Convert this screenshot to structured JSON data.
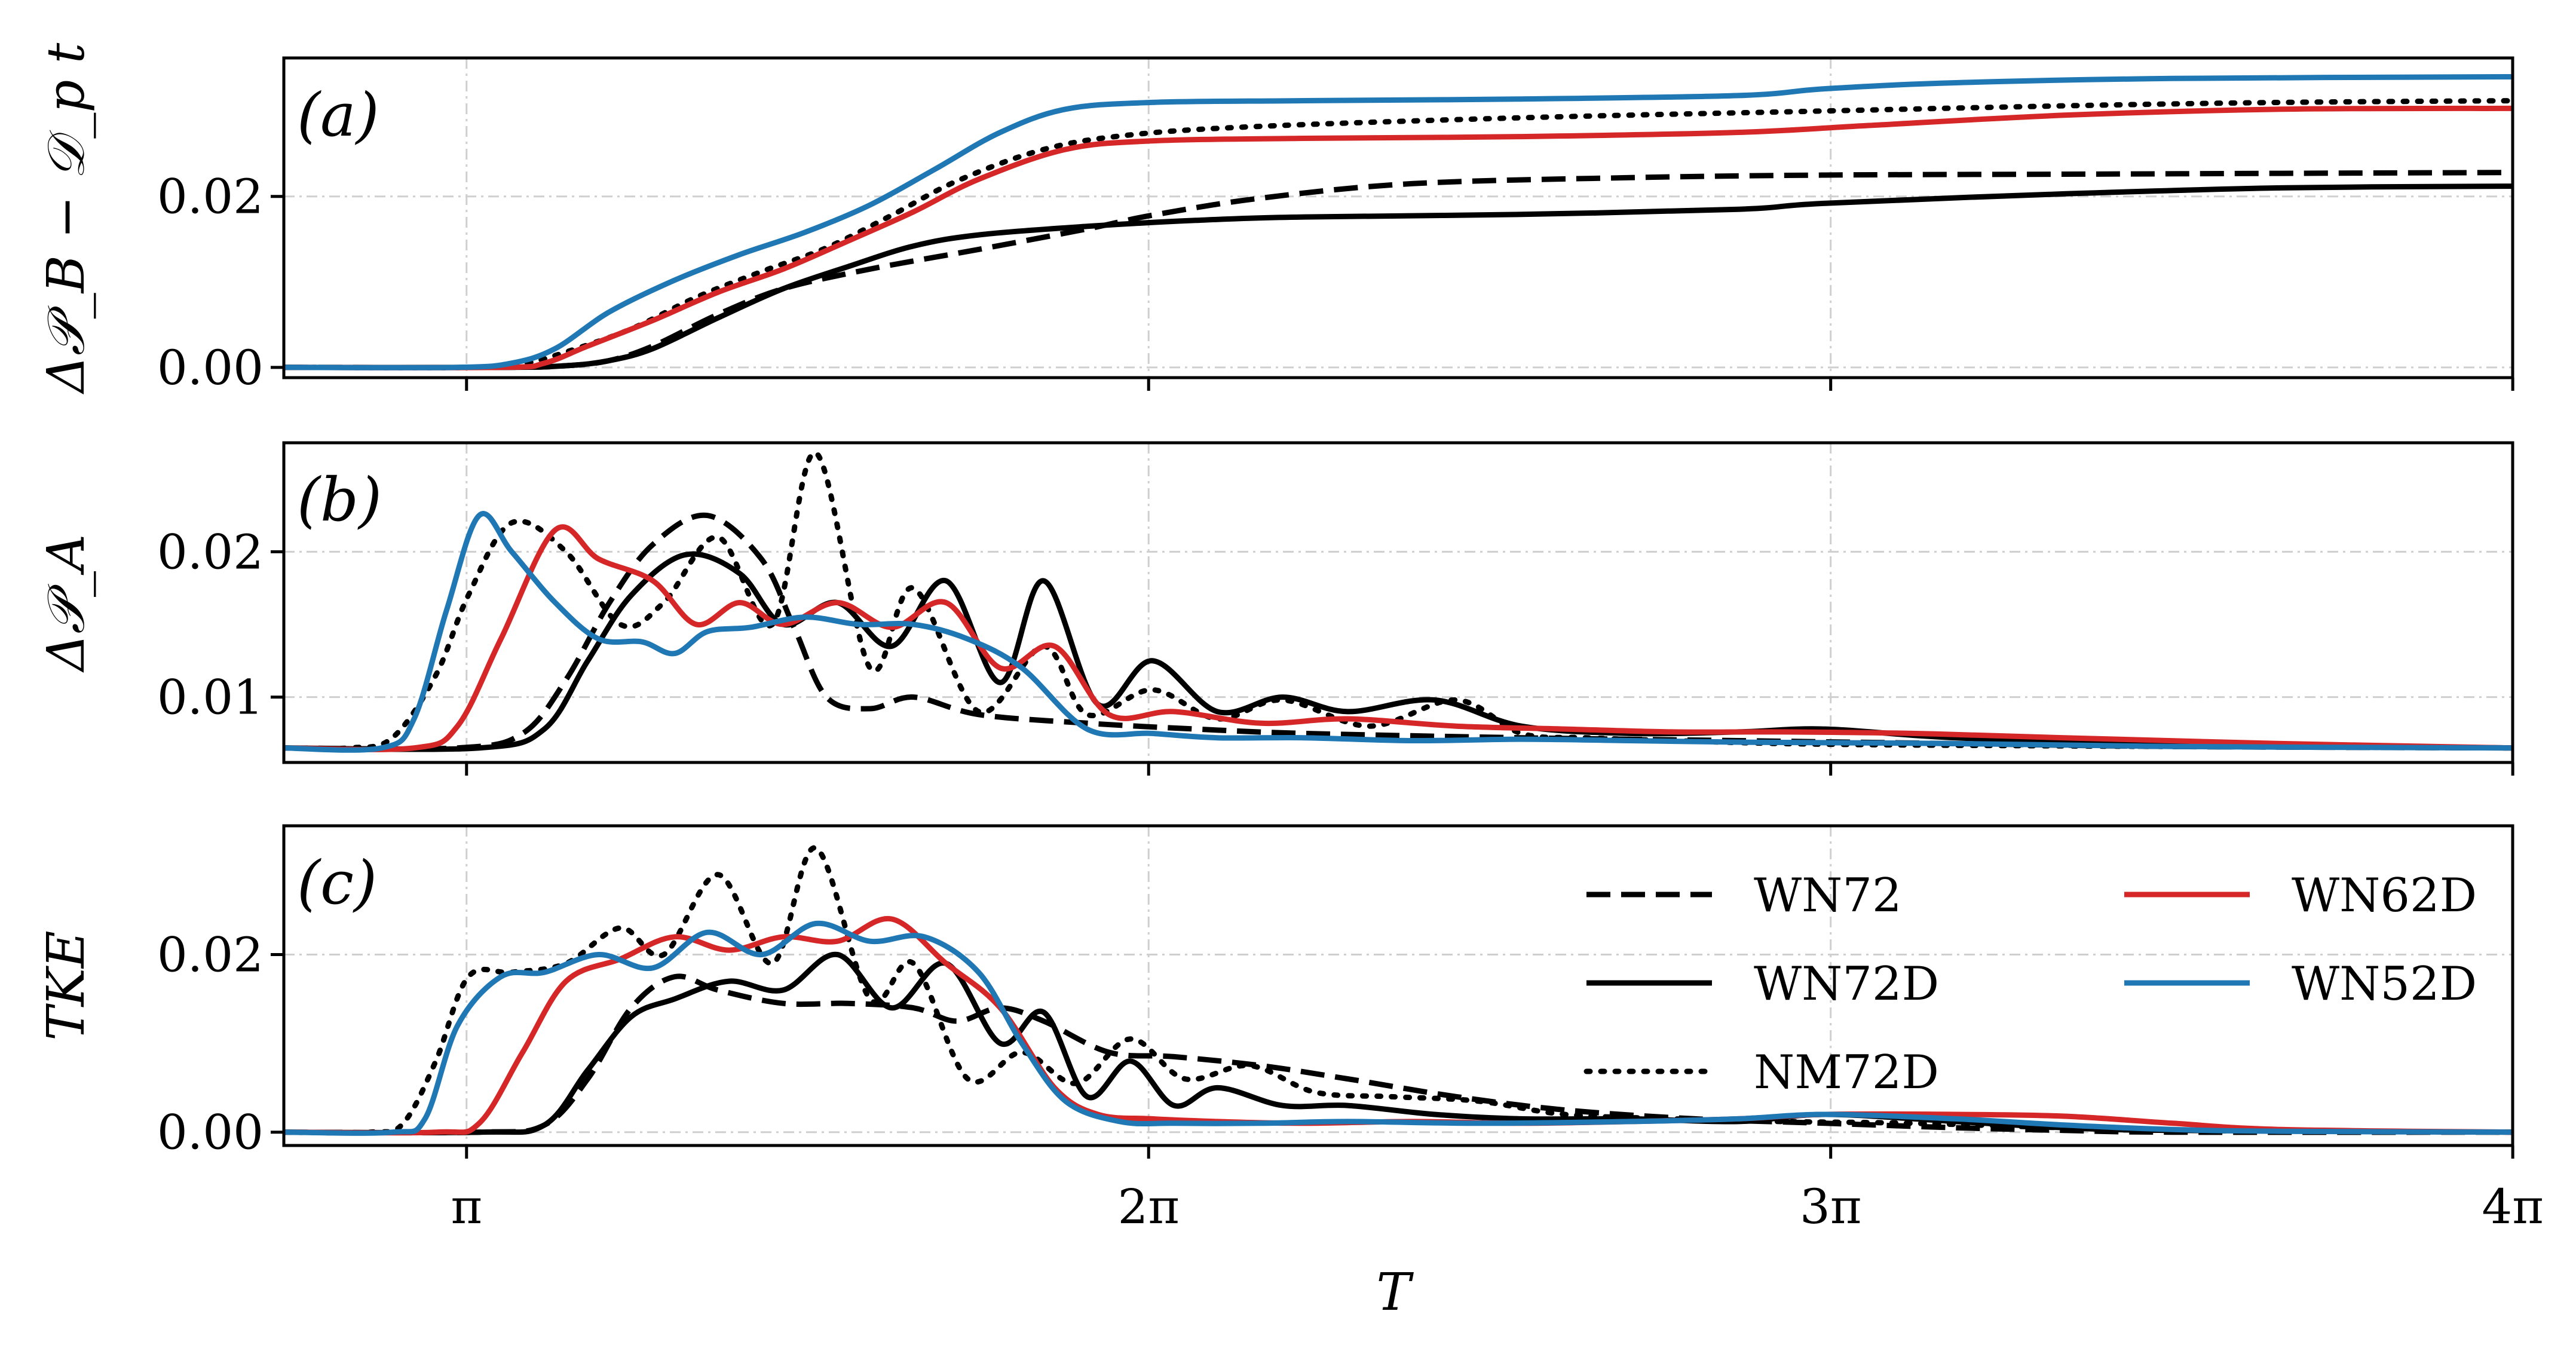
{
  "chart_data": {
    "type": "line",
    "shared_x": {
      "label": "T",
      "lim": [
        2.3,
        12.566
      ],
      "ticks": [
        3.1416,
        6.2832,
        9.4248,
        12.5664
      ],
      "tick_labels": [
        "π",
        "2π",
        "3π",
        "4π"
      ]
    },
    "grid": true,
    "legend": {
      "placement": "inside-right of panel (c), two columns",
      "entries": [
        {
          "name": "WN72",
          "color": "#000000",
          "style": "dashed"
        },
        {
          "name": "WN72D",
          "color": "#000000",
          "style": "solid"
        },
        {
          "name": "NM72D",
          "color": "#000000",
          "style": "dotted"
        },
        {
          "name": "WN62D",
          "color": "#d62728",
          "style": "solid"
        },
        {
          "name": "WN52D",
          "color": "#1f77b4",
          "style": "solid"
        }
      ]
    },
    "panels": [
      {
        "id": "a",
        "tag": "(a)",
        "ylabel": "Δ𝒫_B − 𝒟_p t",
        "ylim": [
          -0.0012,
          0.0362
        ],
        "yticks": [
          0.0,
          0.02
        ],
        "ytick_labels": [
          "0.00",
          "0.02"
        ],
        "series": [
          {
            "name": "WN72",
            "x": [
              2.3,
              3.3,
              3.6,
              3.8,
              4.0,
              4.3,
              4.6,
              5.0,
              5.5,
              6.0,
              6.3,
              6.8,
              7.5,
              8.5,
              9.4,
              10.5,
              11.5,
              12.566
            ],
            "y": [
              0,
              0,
              0.0002,
              0.0008,
              0.0025,
              0.0062,
              0.0092,
              0.0115,
              0.0138,
              0.0162,
              0.0178,
              0.0198,
              0.0215,
              0.0222,
              0.0225,
              0.0226,
              0.0227,
              0.0228
            ]
          },
          {
            "name": "WN72D",
            "x": [
              2.3,
              3.3,
              3.6,
              3.8,
              4.0,
              4.3,
              4.6,
              4.9,
              5.2,
              5.5,
              6.0,
              6.5,
              7.0,
              8.0,
              9.0,
              9.4,
              10.5,
              11.5,
              12.566
            ],
            "y": [
              0,
              0,
              0.0002,
              0.0008,
              0.0022,
              0.0058,
              0.0092,
              0.0118,
              0.0142,
              0.0155,
              0.0165,
              0.0172,
              0.0176,
              0.0179,
              0.0185,
              0.0192,
              0.0203,
              0.021,
              0.0212
            ]
          },
          {
            "name": "NM72D",
            "x": [
              2.3,
              3.2,
              3.4,
              3.6,
              3.9,
              4.2,
              4.5,
              4.8,
              5.1,
              5.4,
              5.8,
              6.2,
              6.8,
              8.0,
              9.4,
              10.5,
              11.5,
              12.566
            ],
            "y": [
              0,
              0,
              0.0004,
              0.0018,
              0.0045,
              0.0082,
              0.0112,
              0.014,
              0.0178,
              0.0218,
              0.0255,
              0.0272,
              0.0282,
              0.0292,
              0.03,
              0.0306,
              0.031,
              0.0312
            ]
          },
          {
            "name": "WN62D",
            "x": [
              2.3,
              3.3,
              3.5,
              3.7,
              4.0,
              4.3,
              4.6,
              4.9,
              5.2,
              5.5,
              5.9,
              6.3,
              7.0,
              8.0,
              9.0,
              9.6,
              10.5,
              11.5,
              12.566
            ],
            "y": [
              0,
              0,
              0.0005,
              0.0025,
              0.0055,
              0.0088,
              0.0115,
              0.0148,
              0.0182,
              0.022,
              0.0255,
              0.0265,
              0.0268,
              0.027,
              0.0275,
              0.0283,
              0.0295,
              0.0302,
              0.0303
            ]
          },
          {
            "name": "WN52D",
            "x": [
              2.3,
              3.1,
              3.35,
              3.55,
              3.8,
              4.1,
              4.4,
              4.7,
              5.0,
              5.3,
              5.6,
              5.9,
              6.3,
              7.0,
              8.0,
              9.0,
              9.4,
              10.0,
              11.0,
              12.566
            ],
            "y": [
              0,
              0,
              0.0005,
              0.0022,
              0.0065,
              0.0102,
              0.0132,
              0.0158,
              0.019,
              0.0232,
              0.0275,
              0.0302,
              0.031,
              0.0312,
              0.0314,
              0.0318,
              0.0326,
              0.0333,
              0.0338,
              0.034
            ]
          }
        ]
      },
      {
        "id": "b",
        "tag": "(b)",
        "ylabel": "Δ𝒫_A",
        "ylim": [
          0.0055,
          0.0275
        ],
        "yticks": [
          0.01,
          0.02
        ],
        "ytick_labels": [
          "0.01",
          "0.02"
        ],
        "series": [
          {
            "name": "WN72",
            "x": [
              2.3,
              3.1,
              3.4,
              3.6,
              3.8,
              4.0,
              4.25,
              4.5,
              4.65,
              4.8,
              5.0,
              5.2,
              5.5,
              6.0,
              6.5,
              7.0,
              8.0,
              9.0,
              10.0,
              11.0,
              12.566
            ],
            "y": [
              0.0065,
              0.0065,
              0.0075,
              0.0112,
              0.0165,
              0.0205,
              0.0225,
              0.0195,
              0.0148,
              0.01,
              0.0092,
              0.01,
              0.0088,
              0.0082,
              0.0078,
              0.0075,
              0.0072,
              0.007,
              0.0068,
              0.0066,
              0.0065
            ]
          },
          {
            "name": "WN72D",
            "x": [
              2.3,
              3.2,
              3.5,
              3.7,
              3.9,
              4.15,
              4.4,
              4.6,
              4.85,
              5.1,
              5.35,
              5.6,
              5.8,
              6.05,
              6.3,
              6.6,
              6.9,
              7.2,
              7.6,
              8.0,
              8.5,
              9.0,
              9.4,
              10.0,
              11.0,
              12.566
            ],
            "y": [
              0.0065,
              0.0065,
              0.0078,
              0.0125,
              0.017,
              0.0198,
              0.0185,
              0.015,
              0.0165,
              0.0135,
              0.018,
              0.011,
              0.018,
              0.0095,
              0.0125,
              0.009,
              0.01,
              0.009,
              0.0098,
              0.008,
              0.0075,
              0.0076,
              0.0078,
              0.0072,
              0.0068,
              0.0065
            ]
          },
          {
            "name": "NM72D",
            "x": [
              2.3,
              2.6,
              2.8,
              3.0,
              3.15,
              3.35,
              3.6,
              3.85,
              4.05,
              4.3,
              4.55,
              4.75,
              5.0,
              5.2,
              5.5,
              5.8,
              6.0,
              6.3,
              6.6,
              6.9,
              7.3,
              7.7,
              8.0,
              8.3,
              8.7,
              9.2,
              9.8,
              11.0,
              12.566
            ],
            "y": [
              0.0065,
              0.0065,
              0.0072,
              0.0115,
              0.017,
              0.022,
              0.02,
              0.015,
              0.0165,
              0.021,
              0.015,
              0.0268,
              0.012,
              0.0175,
              0.009,
              0.0135,
              0.0088,
              0.0105,
              0.0085,
              0.0098,
              0.008,
              0.0098,
              0.0075,
              0.0072,
              0.007,
              0.0068,
              0.0067,
              0.0066,
              0.0065
            ]
          },
          {
            "name": "WN62D",
            "x": [
              2.3,
              2.9,
              3.1,
              3.3,
              3.55,
              3.75,
              4.0,
              4.2,
              4.4,
              4.6,
              4.85,
              5.1,
              5.35,
              5.6,
              5.85,
              6.1,
              6.4,
              6.8,
              7.2,
              7.7,
              8.2,
              8.7,
              9.2,
              9.8,
              10.5,
              11.5,
              12.566
            ],
            "y": [
              0.0065,
              0.0065,
              0.008,
              0.014,
              0.0215,
              0.0195,
              0.018,
              0.015,
              0.0165,
              0.015,
              0.0165,
              0.0148,
              0.0165,
              0.012,
              0.0135,
              0.0088,
              0.009,
              0.0082,
              0.0085,
              0.008,
              0.0078,
              0.0076,
              0.0076,
              0.0075,
              0.0072,
              0.0068,
              0.0065
            ]
          },
          {
            "name": "WN52D",
            "x": [
              2.3,
              2.75,
              2.9,
              3.05,
              3.2,
              3.35,
              3.55,
              3.75,
              3.95,
              4.1,
              4.25,
              4.45,
              4.7,
              4.95,
              5.2,
              5.45,
              5.7,
              6.0,
              6.3,
              6.6,
              7.0,
              7.5,
              8.0,
              8.5,
              9.0,
              10.0,
              11.0,
              12.566
            ],
            "y": [
              0.0065,
              0.0065,
              0.0085,
              0.016,
              0.0225,
              0.02,
              0.0165,
              0.014,
              0.0138,
              0.013,
              0.0145,
              0.0148,
              0.0155,
              0.015,
              0.015,
              0.014,
              0.012,
              0.0078,
              0.0075,
              0.0072,
              0.0072,
              0.007,
              0.0071,
              0.007,
              0.0069,
              0.0068,
              0.0066,
              0.0065
            ]
          }
        ]
      },
      {
        "id": "c",
        "tag": "(c)",
        "ylabel": "TKE",
        "ylim": [
          -0.0015,
          0.0345
        ],
        "yticks": [
          0.0,
          0.02
        ],
        "ytick_labels": [
          "0.00",
          "0.02"
        ],
        "series": [
          {
            "name": "WN72",
            "x": [
              2.3,
              3.2,
              3.5,
              3.7,
              3.9,
              4.1,
              4.3,
              4.6,
              4.9,
              5.2,
              5.4,
              5.6,
              5.8,
              6.1,
              6.4,
              6.8,
              7.2,
              7.7,
              8.2,
              8.8,
              9.4,
              10.0,
              10.5,
              11.0,
              12.566
            ],
            "y": [
              0,
              0,
              0.0008,
              0.006,
              0.014,
              0.0175,
              0.016,
              0.0145,
              0.0145,
              0.014,
              0.0125,
              0.014,
              0.0125,
              0.009,
              0.0085,
              0.0075,
              0.006,
              0.004,
              0.0025,
              0.0015,
              0.001,
              0.0005,
              0.0002,
              0,
              0
            ]
          },
          {
            "name": "WN72D",
            "x": [
              2.3,
              3.2,
              3.5,
              3.7,
              3.9,
              4.1,
              4.35,
              4.6,
              4.85,
              5.1,
              5.35,
              5.6,
              5.8,
              6.0,
              6.2,
              6.4,
              6.6,
              6.9,
              7.2,
              7.6,
              8.0,
              8.5,
              9.0,
              9.4,
              10.0,
              10.5,
              11.0,
              12.566
            ],
            "y": [
              0,
              0,
              0.0008,
              0.007,
              0.013,
              0.015,
              0.017,
              0.016,
              0.02,
              0.014,
              0.019,
              0.01,
              0.0135,
              0.004,
              0.008,
              0.003,
              0.005,
              0.003,
              0.003,
              0.002,
              0.0015,
              0.0015,
              0.0012,
              0.002,
              0.0012,
              0.0005,
              0.0002,
              0
            ]
          },
          {
            "name": "NM72D",
            "x": [
              2.3,
              2.7,
              2.85,
              3.0,
              3.15,
              3.35,
              3.6,
              3.85,
              4.05,
              4.3,
              4.55,
              4.75,
              5.0,
              5.2,
              5.45,
              5.7,
              5.95,
              6.2,
              6.45,
              6.75,
              7.05,
              7.4,
              7.8,
              8.2,
              8.7,
              9.2,
              9.8,
              10.5,
              11.0,
              12.566
            ],
            "y": [
              0,
              0,
              0.001,
              0.008,
              0.0175,
              0.018,
              0.019,
              0.023,
              0.02,
              0.029,
              0.019,
              0.032,
              0.015,
              0.019,
              0.006,
              0.009,
              0.0055,
              0.0105,
              0.006,
              0.0075,
              0.0045,
              0.004,
              0.0035,
              0.002,
              0.0015,
              0.0012,
              0.001,
              0.0005,
              0.0002,
              0
            ]
          },
          {
            "name": "WN62D",
            "x": [
              2.3,
              3.0,
              3.2,
              3.4,
              3.6,
              3.85,
              4.1,
              4.35,
              4.6,
              4.85,
              5.1,
              5.35,
              5.6,
              5.85,
              6.05,
              6.3,
              6.6,
              7.0,
              7.5,
              8.0,
              8.5,
              9.0,
              9.4,
              10.0,
              10.5,
              11.0,
              11.5,
              12.566
            ],
            "y": [
              0,
              0,
              0.001,
              0.009,
              0.017,
              0.0195,
              0.022,
              0.0205,
              0.022,
              0.0215,
              0.024,
              0.019,
              0.014,
              0.005,
              0.002,
              0.0015,
              0.0012,
              0.001,
              0.0012,
              0.001,
              0.0012,
              0.0015,
              0.002,
              0.002,
              0.0018,
              0.001,
              0.0003,
              0
            ]
          },
          {
            "name": "WN52D",
            "x": [
              2.3,
              2.8,
              2.95,
              3.1,
              3.3,
              3.5,
              3.75,
              4.0,
              4.25,
              4.5,
              4.75,
              5.0,
              5.25,
              5.5,
              5.7,
              5.9,
              6.15,
              6.4,
              6.8,
              7.2,
              7.8,
              8.5,
              9.0,
              9.4,
              10.0,
              10.5,
              11.0,
              11.5,
              12.566
            ],
            "y": [
              0,
              0,
              0.0015,
              0.012,
              0.0175,
              0.018,
              0.02,
              0.0185,
              0.0225,
              0.02,
              0.0235,
              0.0215,
              0.022,
              0.018,
              0.01,
              0.0035,
              0.0012,
              0.001,
              0.001,
              0.0012,
              0.001,
              0.0012,
              0.0015,
              0.002,
              0.0015,
              0.0008,
              0.0003,
              0.0001,
              0
            ]
          }
        ]
      }
    ]
  }
}
